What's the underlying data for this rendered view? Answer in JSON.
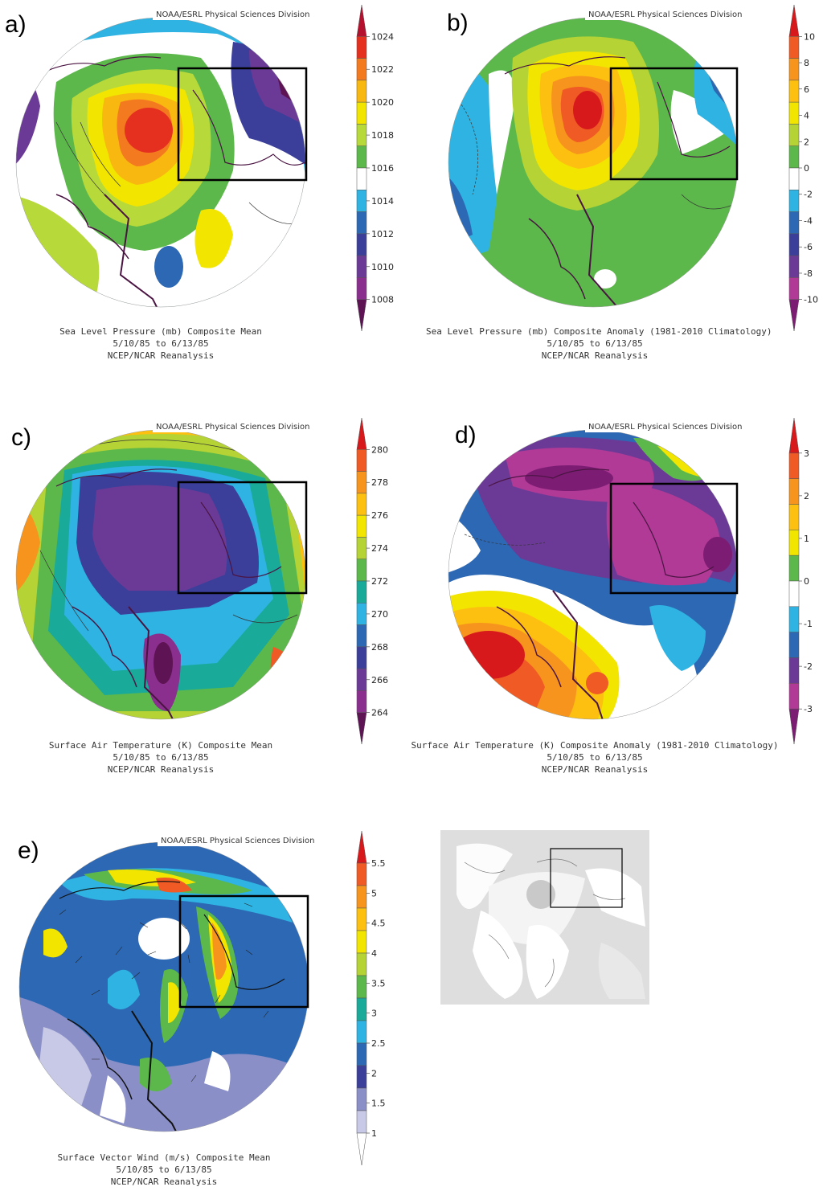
{
  "panels": {
    "a": {
      "letter": "a)",
      "credit": "NOAA/ESRL Physical Sciences Division",
      "caption": [
        "Sea Level Pressure (mb) Composite Mean",
        "5/10/85   to 6/13/85",
        "NCEP/NCAR Reanalysis"
      ],
      "colorbar": {
        "labels": [
          "1024",
          "1022",
          "1020",
          "1018",
          "1016",
          "1014",
          "1012",
          "1010",
          "1008"
        ],
        "colors": [
          "#b5102d",
          "#e53020",
          "#f47a1f",
          "#f9b80f",
          "#f2e600",
          "#b8d93a",
          "#5cb84b",
          "#ffffff",
          "#2fb3e2",
          "#2c68b4",
          "#3c3f9a",
          "#6b3a96",
          "#8b2f8f",
          "#5e1454"
        ]
      }
    },
    "b": {
      "letter": "b)",
      "credit": "NOAA/ESRL Physical Sciences Division",
      "caption": [
        "Sea Level Pressure (mb) Composite Anomaly (1981-2010 Climatology)",
        "5/10/85   to 6/13/85",
        "NCEP/NCAR Reanalysis"
      ],
      "colorbar": {
        "labels": [
          "10",
          "8",
          "6",
          "4",
          "2",
          "0",
          "-2",
          "-4",
          "-6",
          "-8",
          "-10"
        ],
        "colors": [
          "#d7191c",
          "#f05a24",
          "#f7941d",
          "#fdc010",
          "#f2e600",
          "#b5d334",
          "#5cb84b",
          "#ffffff",
          "#2fb3e2",
          "#2c68b4",
          "#3c3f9a",
          "#6b3a96",
          "#b03a96",
          "#7c1d73"
        ]
      }
    },
    "c": {
      "letter": "c)",
      "credit": "NOAA/ESRL Physical Sciences Division",
      "caption": [
        "Surface Air Temperature (K) Composite Mean",
        "5/10/85   to 6/13/85",
        "NCEP/NCAR Reanalysis"
      ],
      "colorbar": {
        "labels": [
          "280",
          "278",
          "276",
          "274",
          "272",
          "270",
          "268",
          "266",
          "264"
        ],
        "colors": [
          "#d7191c",
          "#f05a24",
          "#f7941d",
          "#fdc010",
          "#f2e600",
          "#b5d334",
          "#5cb84b",
          "#1aaa9a",
          "#2fb3e2",
          "#2c68b4",
          "#3c3f9a",
          "#6b3a96",
          "#8b2f8f",
          "#5e1454"
        ]
      }
    },
    "d": {
      "letter": "d)",
      "credit": "NOAA/ESRL Physical Sciences Division",
      "caption": [
        "Surface Air Temperature (K) Composite Anomaly (1981-2010 Climatology)",
        "5/10/85   to 6/13/85",
        "NCEP/NCAR Reanalysis"
      ],
      "colorbar": {
        "labels": [
          "3",
          "2",
          "1",
          "0",
          "-1",
          "-2",
          "-3"
        ],
        "colors": [
          "#d7191c",
          "#f05a24",
          "#f7941d",
          "#fdc010",
          "#f2e600",
          "#5cb84b",
          "#ffffff",
          "#2fb3e2",
          "#2c68b4",
          "#6b3a96",
          "#b03a96",
          "#7c1d73"
        ]
      }
    },
    "e": {
      "letter": "e)",
      "credit": "NOAA/ESRL Physical Sciences Division",
      "caption": [
        "Surface Vector Wind (m/s) Composite Mean",
        "5/10/85   to 6/13/85",
        "NCEP/NCAR Reanalysis"
      ],
      "colorbar": {
        "labels": [
          "5.5",
          "5",
          "4.5",
          "4",
          "3.5",
          "3",
          "2.5",
          "2",
          "1.5",
          "1"
        ],
        "colors": [
          "#d7191c",
          "#f05a24",
          "#f7941d",
          "#fdc010",
          "#f2e600",
          "#b5d334",
          "#5cb84b",
          "#1aaa9a",
          "#2fb3e2",
          "#2c68b4",
          "#3c3f9a",
          "#8a8fc8",
          "#c8c9e6",
          "#ffffff"
        ]
      }
    }
  },
  "colors": {
    "coastline": "#4a1442",
    "box": "#000000",
    "inset_bg": "#dedede",
    "inset_land": "#ffffff"
  }
}
